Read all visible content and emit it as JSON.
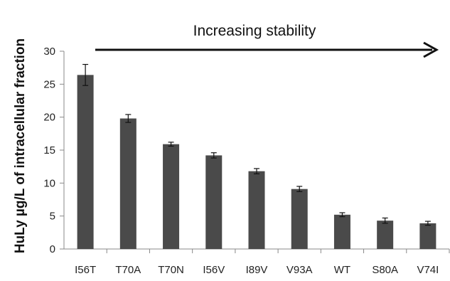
{
  "chart_data": {
    "type": "bar",
    "title": "",
    "xlabel": "",
    "ylabel": "HuLy µg/L of intracellular fraction",
    "ylim": [
      0,
      30
    ],
    "yticks": [
      0,
      5,
      10,
      15,
      20,
      25,
      30
    ],
    "categories": [
      "I56T",
      "T70A",
      "T70N",
      "I56V",
      "I89V",
      "V93A",
      "WT",
      "S80A",
      "V74I"
    ],
    "values": [
      26.4,
      19.8,
      15.9,
      14.2,
      11.8,
      9.1,
      5.2,
      4.3,
      3.9
    ],
    "errors": [
      1.6,
      0.6,
      0.3,
      0.4,
      0.4,
      0.4,
      0.3,
      0.4,
      0.3
    ],
    "bar_color": "#4a4a4a",
    "axis_color": "#888888",
    "grid": false,
    "annotation": {
      "text": "Increasing stability",
      "arrow_direction": "right"
    }
  }
}
